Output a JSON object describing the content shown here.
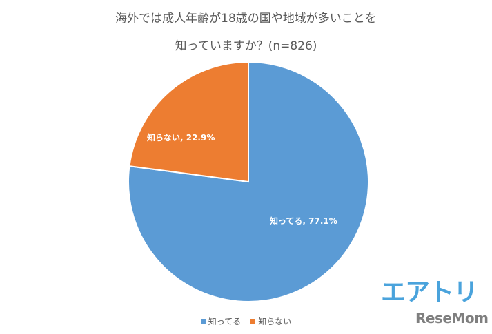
{
  "chart_data": {
    "type": "pie",
    "title": "海外では成人年齢が18歳の国や地域が多いことを知っていますか？(n=826)",
    "title_lines": [
      "海外では成人年齢が18歳の国や地域が多いことを",
      "知っていますか？(n=826)"
    ],
    "n": 826,
    "categories": [
      "知ってる",
      "知らない"
    ],
    "values": [
      77.1,
      22.9
    ],
    "units": "%",
    "colors": [
      "#5b9bd5",
      "#ed7d31"
    ],
    "data_labels": [
      "知ってる, 77.1%",
      "知らない, 22.9%"
    ],
    "legend": {
      "position": "bottom",
      "entries": [
        "知ってる",
        "知らない"
      ]
    },
    "start_angle_deg": 0,
    "direction": "clockwise"
  },
  "branding": {
    "logo_primary": "エアトリ",
    "logo_secondary": "ReseMom"
  }
}
